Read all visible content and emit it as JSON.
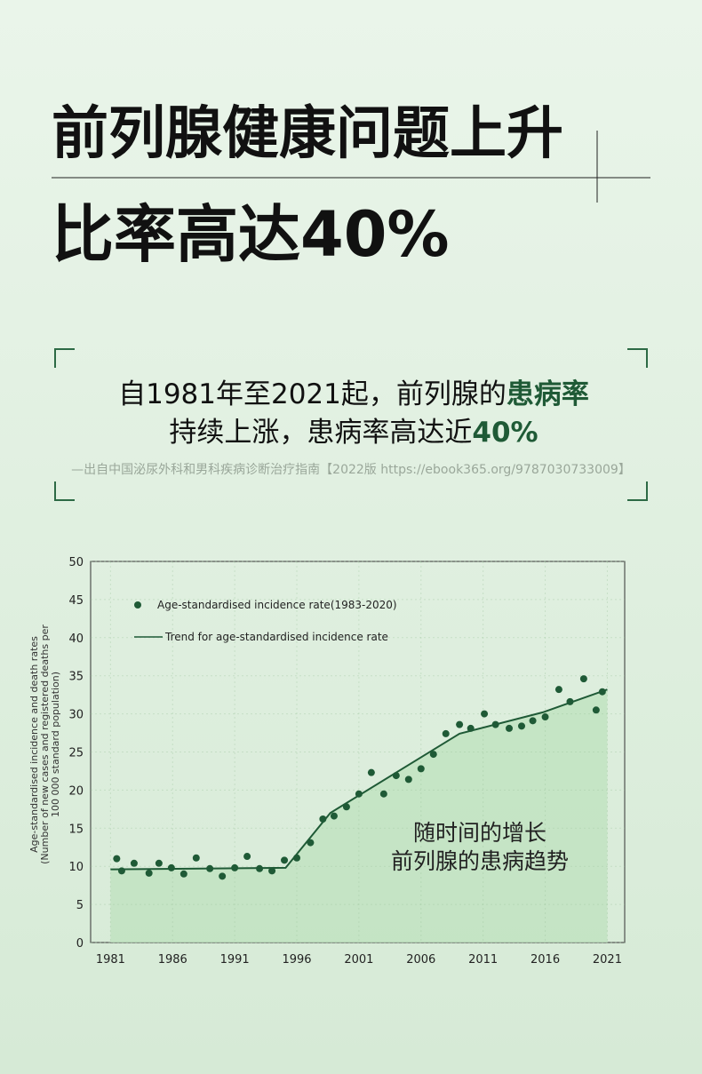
{
  "header": {
    "title_lines": [
      "前列腺健康问题上升",
      "比率高达40%"
    ]
  },
  "quote": {
    "line1": "自1981年至2021起，前列腺的",
    "line1_highlight": "患病率",
    "line2": "持续上涨，患病率高达近",
    "line2_highlight": "40%",
    "source": "—出自中国泌尿外科和男科疾病诊断治疗指南【2022版 https://ebook365.org/9787030733009】"
  },
  "chart_data": {
    "type": "scatter",
    "ylabel_lines": [
      "Age-standardised incidence and death rates",
      "(Number of new cases and registered deaths per",
      "100 000 standard population)"
    ],
    "annotations": [
      "随时间的增长",
      "前列腺的患病趋势"
    ],
    "xlim": [
      1979.4,
      2022.4
    ],
    "ylim": [
      0,
      50
    ],
    "xticks": [
      1981,
      1986,
      1991,
      1996,
      2001,
      2006,
      2011,
      2016,
      2021
    ],
    "yticks": [
      0,
      5,
      10,
      15,
      20,
      25,
      30,
      35,
      40,
      45,
      50
    ],
    "grid": true,
    "series": [
      {
        "name": "Age-standardised incidence rate(1983-2020)",
        "type": "scatter",
        "color": "#1f5a36",
        "x": [
          1981.5,
          1981.9,
          1982.9,
          1984.1,
          1984.9,
          1985.9,
          1986.9,
          1987.9,
          1989.0,
          1990.0,
          1991.0,
          1992.0,
          1993.0,
          1994.0,
          1995.0,
          1996.0,
          1997.1,
          1998.1,
          1999.0,
          2000.0,
          2001.0,
          2002.0,
          2003.0,
          2004.0,
          2005.0,
          2006.0,
          2007.0,
          2008.0,
          2009.1,
          2010.0,
          2011.1,
          2012.0,
          2013.1,
          2014.1,
          2015.0,
          2016.0,
          2017.1,
          2018.0,
          2019.1,
          2020.1,
          2020.6
        ],
        "values": [
          11.0,
          9.4,
          10.4,
          9.1,
          10.4,
          9.8,
          9.0,
          11.1,
          9.7,
          8.7,
          9.8,
          11.3,
          9.7,
          9.4,
          10.8,
          11.1,
          13.1,
          16.2,
          16.6,
          17.8,
          19.5,
          22.3,
          19.5,
          21.9,
          21.4,
          22.8,
          24.7,
          27.4,
          28.6,
          28.1,
          30.0,
          28.6,
          28.1,
          28.4,
          29.1,
          29.6,
          33.2,
          31.6,
          34.6,
          30.5,
          32.9
        ]
      },
      {
        "name": "Trend for age-standardised incidence rate",
        "type": "line",
        "color": "#1f5a36",
        "fill": "#bfe2bf",
        "x": [
          1981,
          1995.1,
          1998.7,
          2009.1,
          2015.8,
          2021
        ],
        "values": [
          9.6,
          9.8,
          17.0,
          27.4,
          30.2,
          33.2
        ]
      }
    ]
  }
}
